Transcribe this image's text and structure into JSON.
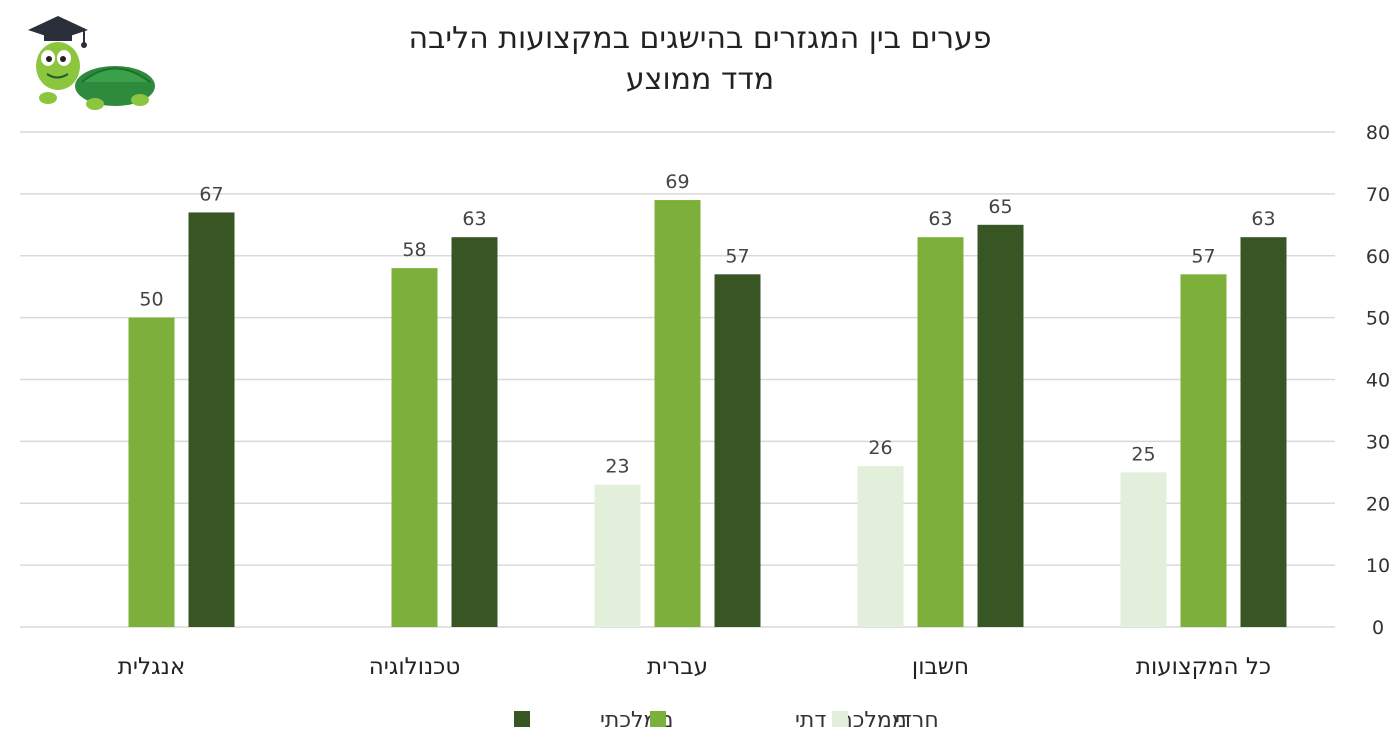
{
  "chart_data": {
    "type": "bar",
    "title": "פערים בין המגזרים בהישגים במקצועות הליבה",
    "subtitle": "מדד ממוצע",
    "categories": [
      "כל המקצועות",
      "חשבון",
      "עברית",
      "טכנולוגיה",
      "אנגלית"
    ],
    "series": [
      {
        "name": "חרדי",
        "color": "#e2efda",
        "values": [
          25,
          26,
          23,
          null,
          null
        ]
      },
      {
        "name": "ממלכתי דתי",
        "color": "#7db03a",
        "values": [
          57,
          63,
          69,
          58,
          50
        ]
      },
      {
        "name": "ממלכתי",
        "color": "#375623",
        "values": [
          63,
          65,
          57,
          63,
          67
        ]
      }
    ],
    "ylim": [
      0,
      80
    ],
    "yticks": [
      0,
      10,
      20,
      30,
      40,
      50,
      60,
      70,
      80
    ],
    "y_axis_side": "right",
    "category_order": "right-to-left",
    "grid": true,
    "legend_position": "bottom",
    "data_labels": true
  },
  "logo": {
    "icon": "turtle-graduate-icon"
  }
}
